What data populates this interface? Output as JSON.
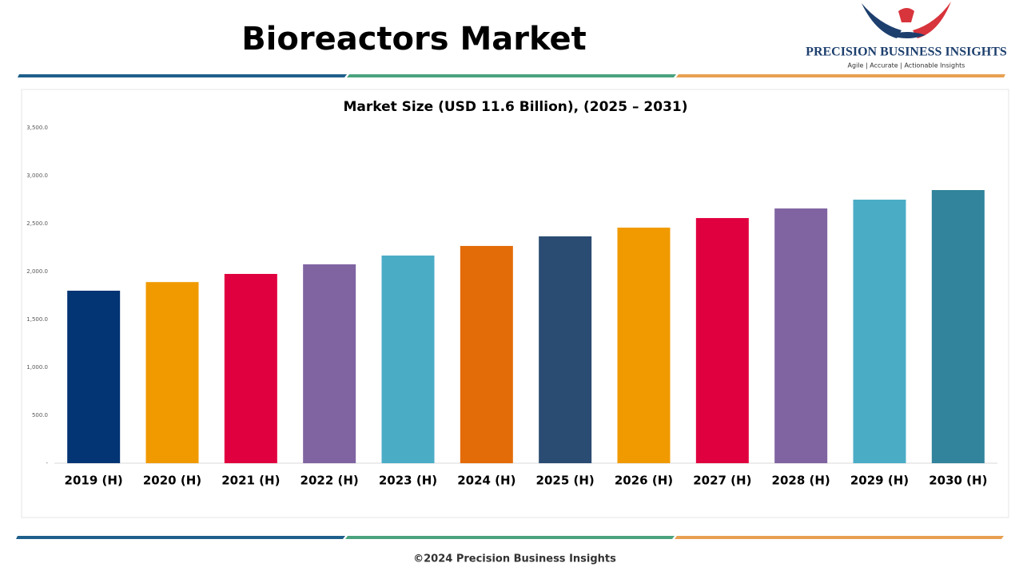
{
  "header": {
    "title": "Bioreactors Market",
    "logo_name": "PRECISION BUSINESS INSIGHTS",
    "logo_tagline": "Agile | Accurate | Actionable Insights"
  },
  "chart_data": {
    "type": "bar",
    "title": "Market Size (USD 11.6 Billion), (2025 – 2031)",
    "categories": [
      "2019 (H)",
      "2020 (H)",
      "2021 (H)",
      "2022 (H)",
      "2023 (H)",
      "2024 (H)",
      "2025 (H)",
      "2026 (H)",
      "2027 (H)",
      "2028 (H)",
      "2029 (H)",
      "2030 (H)"
    ],
    "values": [
      1800,
      1890,
      1975,
      2075,
      2167,
      2267,
      2367,
      2458,
      2558,
      2658,
      2750,
      2850
    ],
    "colors": [
      "#033473",
      "#f09a00",
      "#e0003f",
      "#8064a2",
      "#4bacc6",
      "#e36c09",
      "#2a4b72",
      "#f09a00",
      "#e0003f",
      "#8064a2",
      "#4bacc6",
      "#31849b"
    ],
    "ylim": [
      0,
      3500
    ],
    "yticks": [
      {
        "value": 0,
        "label": "-"
      },
      {
        "value": 500,
        "label": "500.0"
      },
      {
        "value": 1000,
        "label": "1,000.0"
      },
      {
        "value": 1500,
        "label": "1,500.0"
      },
      {
        "value": 2000,
        "label": "2,000.0"
      },
      {
        "value": 2500,
        "label": "2,500.0"
      },
      {
        "value": 3000,
        "label": "3,000.0"
      },
      {
        "value": 3500,
        "label": "3,500.0"
      }
    ],
    "grid": false
  },
  "footer": {
    "text": "©2024 Precision Business Insights"
  }
}
